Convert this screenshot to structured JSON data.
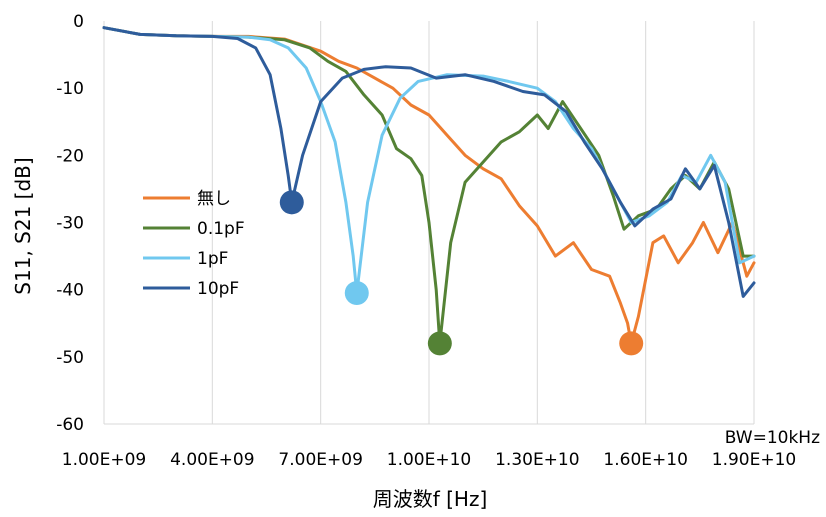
{
  "chart_data": {
    "type": "line",
    "xlabel": "周波数f [Hz]",
    "ylabel": "S11, S21 [dB]",
    "xlim": [
      1000000000,
      19000000000
    ],
    "ylim": [
      -60,
      0
    ],
    "x_ticks": [
      "1.00E+09",
      "4.00E+09",
      "7.00E+09",
      "1.00E+10",
      "1.30E+10",
      "1.60E+10",
      "1.90E+10"
    ],
    "x_tick_values": [
      1000000000,
      4000000000,
      7000000000,
      10000000000,
      13000000000,
      16000000000,
      19000000000
    ],
    "y_ticks": [
      "0",
      "-10",
      "-20",
      "-30",
      "-40",
      "-50",
      "-60"
    ],
    "y_tick_values": [
      0,
      -10,
      -20,
      -30,
      -40,
      -50,
      -60
    ],
    "grid": "vertical",
    "legend_position": "left-middle",
    "annotation": "BW=10kHz",
    "series": [
      {
        "name": "無し",
        "color": "#ED7D31",
        "points": [
          [
            1000000000.0,
            -1.0
          ],
          [
            2000000000.0,
            -2.0
          ],
          [
            3000000000.0,
            -2.2
          ],
          [
            4000000000.0,
            -2.3
          ],
          [
            5000000000.0,
            -2.3
          ],
          [
            6000000000.0,
            -2.7
          ],
          [
            7000000000.0,
            -4.5
          ],
          [
            7500000000.0,
            -6.0
          ],
          [
            8000000000.0,
            -7.0
          ],
          [
            8500000000.0,
            -8.5
          ],
          [
            9000000000.0,
            -10.0
          ],
          [
            9500000000.0,
            -12.5
          ],
          [
            10000000000.0,
            -14.0
          ],
          [
            10500000000.0,
            -17.0
          ],
          [
            11000000000.0,
            -20.0
          ],
          [
            11500000000.0,
            -22.0
          ],
          [
            12000000000.0,
            -23.5
          ],
          [
            12500000000.0,
            -27.5
          ],
          [
            13000000000.0,
            -30.5
          ],
          [
            13500000000.0,
            -35.0
          ],
          [
            14000000000.0,
            -33.0
          ],
          [
            14500000000.0,
            -37.0
          ],
          [
            15000000000.0,
            -38.0
          ],
          [
            15300000000.0,
            -42.0
          ],
          [
            15500000000.0,
            -45.0
          ],
          [
            15600000000.0,
            -48.0
          ],
          [
            15800000000.0,
            -44.0
          ],
          [
            16200000000.0,
            -33.0
          ],
          [
            16500000000.0,
            -32.0
          ],
          [
            16900000000.0,
            -36.0
          ],
          [
            17300000000.0,
            -33.0
          ],
          [
            17600000000.0,
            -30.0
          ],
          [
            18000000000.0,
            -34.5
          ],
          [
            18400000000.0,
            -30.0
          ],
          [
            18800000000.0,
            -38.0
          ],
          [
            19000000000.0,
            -36.0
          ]
        ],
        "marker": [
          15600000000.0,
          -48.0
        ]
      },
      {
        "name": "0.1pF",
        "color": "#548235",
        "points": [
          [
            1000000000.0,
            -1.0
          ],
          [
            2000000000.0,
            -2.0
          ],
          [
            3000000000.0,
            -2.2
          ],
          [
            4000000000.0,
            -2.3
          ],
          [
            5000000000.0,
            -2.4
          ],
          [
            6000000000.0,
            -2.8
          ],
          [
            6700000000.0,
            -4.0
          ],
          [
            7200000000.0,
            -6.0
          ],
          [
            7700000000.0,
            -7.5
          ],
          [
            8200000000.0,
            -11.0
          ],
          [
            8700000000.0,
            -14.0
          ],
          [
            9100000000.0,
            -19.0
          ],
          [
            9500000000.0,
            -20.5
          ],
          [
            9800000000.0,
            -23.0
          ],
          [
            10000000000.0,
            -30.0
          ],
          [
            10200000000.0,
            -40.0
          ],
          [
            10300000000.0,
            -48.0
          ],
          [
            10600000000.0,
            -33.0
          ],
          [
            11000000000.0,
            -24.0
          ],
          [
            11500000000.0,
            -21.0
          ],
          [
            12000000000.0,
            -18.0
          ],
          [
            12500000000.0,
            -16.5
          ],
          [
            13000000000.0,
            -14.0
          ],
          [
            13300000000.0,
            -16.0
          ],
          [
            13700000000.0,
            -12.0
          ],
          [
            14200000000.0,
            -16.0
          ],
          [
            14700000000.0,
            -20.0
          ],
          [
            15100000000.0,
            -26.0
          ],
          [
            15400000000.0,
            -31.0
          ],
          [
            15800000000.0,
            -29.0
          ],
          [
            16300000000.0,
            -28.0
          ],
          [
            16700000000.0,
            -25.0
          ],
          [
            17100000000.0,
            -23.0
          ],
          [
            17500000000.0,
            -25.0
          ],
          [
            17900000000.0,
            -21.0
          ],
          [
            18300000000.0,
            -25.0
          ],
          [
            18700000000.0,
            -35.0
          ],
          [
            19000000000.0,
            -35.0
          ]
        ],
        "marker": [
          10300000000.0,
          -48.0
        ]
      },
      {
        "name": "1pF",
        "color": "#70C8EF",
        "points": [
          [
            1000000000.0,
            -1.0
          ],
          [
            2000000000.0,
            -2.0
          ],
          [
            3000000000.0,
            -2.2
          ],
          [
            4000000000.0,
            -2.3
          ],
          [
            5000000000.0,
            -2.4
          ],
          [
            5600000000.0,
            -2.8
          ],
          [
            6100000000.0,
            -4.0
          ],
          [
            6600000000.0,
            -7.0
          ],
          [
            7000000000.0,
            -12.0
          ],
          [
            7400000000.0,
            -18.0
          ],
          [
            7700000000.0,
            -27.0
          ],
          [
            7900000000.0,
            -35.0
          ],
          [
            8000000000.0,
            -40.5
          ],
          [
            8300000000.0,
            -27.0
          ],
          [
            8700000000.0,
            -17.0
          ],
          [
            9200000000.0,
            -11.5
          ],
          [
            9700000000.0,
            -9.0
          ],
          [
            10500000000.0,
            -8.0
          ],
          [
            11500000000.0,
            -8.2
          ],
          [
            12200000000.0,
            -9.0
          ],
          [
            13000000000.0,
            -10.0
          ],
          [
            13500000000.0,
            -12.0
          ],
          [
            14000000000.0,
            -16.0
          ],
          [
            14500000000.0,
            -19.0
          ],
          [
            15000000000.0,
            -24.0
          ],
          [
            15300000000.0,
            -27.0
          ],
          [
            15600000000.0,
            -30.0
          ],
          [
            16100000000.0,
            -29.0
          ],
          [
            16600000000.0,
            -27.0
          ],
          [
            17000000000.0,
            -23.0
          ],
          [
            17400000000.0,
            -24.0
          ],
          [
            17800000000.0,
            -20.0
          ],
          [
            18200000000.0,
            -24.0
          ],
          [
            18600000000.0,
            -36.0
          ],
          [
            19000000000.0,
            -35.0
          ]
        ],
        "marker": [
          8000000000.0,
          -40.5
        ]
      },
      {
        "name": "10pF",
        "color": "#2E5C9B",
        "points": [
          [
            1000000000.0,
            -1.0
          ],
          [
            2000000000.0,
            -2.0
          ],
          [
            3000000000.0,
            -2.2
          ],
          [
            4000000000.0,
            -2.3
          ],
          [
            4700000000.0,
            -2.6
          ],
          [
            5200000000.0,
            -4.0
          ],
          [
            5600000000.0,
            -8.0
          ],
          [
            5900000000.0,
            -16.0
          ],
          [
            6100000000.0,
            -23.0
          ],
          [
            6200000000.0,
            -27.0
          ],
          [
            6500000000.0,
            -20.0
          ],
          [
            7000000000.0,
            -12.0
          ],
          [
            7600000000.0,
            -8.5
          ],
          [
            8200000000.0,
            -7.2
          ],
          [
            8800000000.0,
            -6.8
          ],
          [
            9500000000.0,
            -7.0
          ],
          [
            10200000000.0,
            -8.5
          ],
          [
            11000000000.0,
            -8.0
          ],
          [
            11800000000.0,
            -9.0
          ],
          [
            12600000000.0,
            -10.5
          ],
          [
            13200000000.0,
            -11.0
          ],
          [
            13800000000.0,
            -13.5
          ],
          [
            14300000000.0,
            -18.0
          ],
          [
            14800000000.0,
            -22.0
          ],
          [
            15300000000.0,
            -27.0
          ],
          [
            15700000000.0,
            -30.5
          ],
          [
            16200000000.0,
            -28.0
          ],
          [
            16700000000.0,
            -26.5
          ],
          [
            17100000000.0,
            -22.0
          ],
          [
            17500000000.0,
            -25.0
          ],
          [
            17900000000.0,
            -21.5
          ],
          [
            18300000000.0,
            -30.0
          ],
          [
            18700000000.0,
            -41.0
          ],
          [
            19000000000.0,
            -39.0
          ]
        ],
        "marker": [
          6200000000.0,
          -27.0
        ]
      }
    ]
  }
}
